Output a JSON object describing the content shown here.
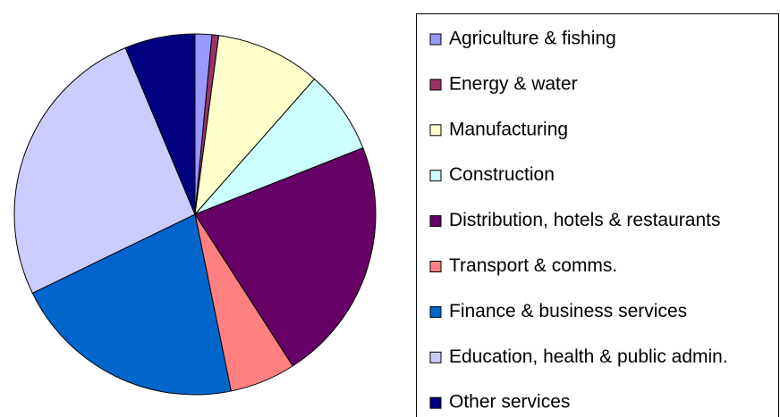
{
  "chart_data": {
    "type": "pie",
    "categories": [
      "Agriculture & fishing",
      "Energy & water",
      "Manufacturing",
      "Construction",
      "Distribution, hotels & restaurants",
      "Transport & comms.",
      "Finance & business services",
      "Education, health & public admin.",
      "Other services"
    ],
    "values": [
      1.5,
      0.6,
      9.4,
      7.5,
      21.9,
      5.9,
      21,
      25.9,
      6.3
    ],
    "colors": [
      "#9999ff",
      "#993366",
      "#ffffcc",
      "#ccffff",
      "#660066",
      "#ff8080",
      "#0066cc",
      "#ccccff",
      "#000080"
    ],
    "legend": "right"
  }
}
